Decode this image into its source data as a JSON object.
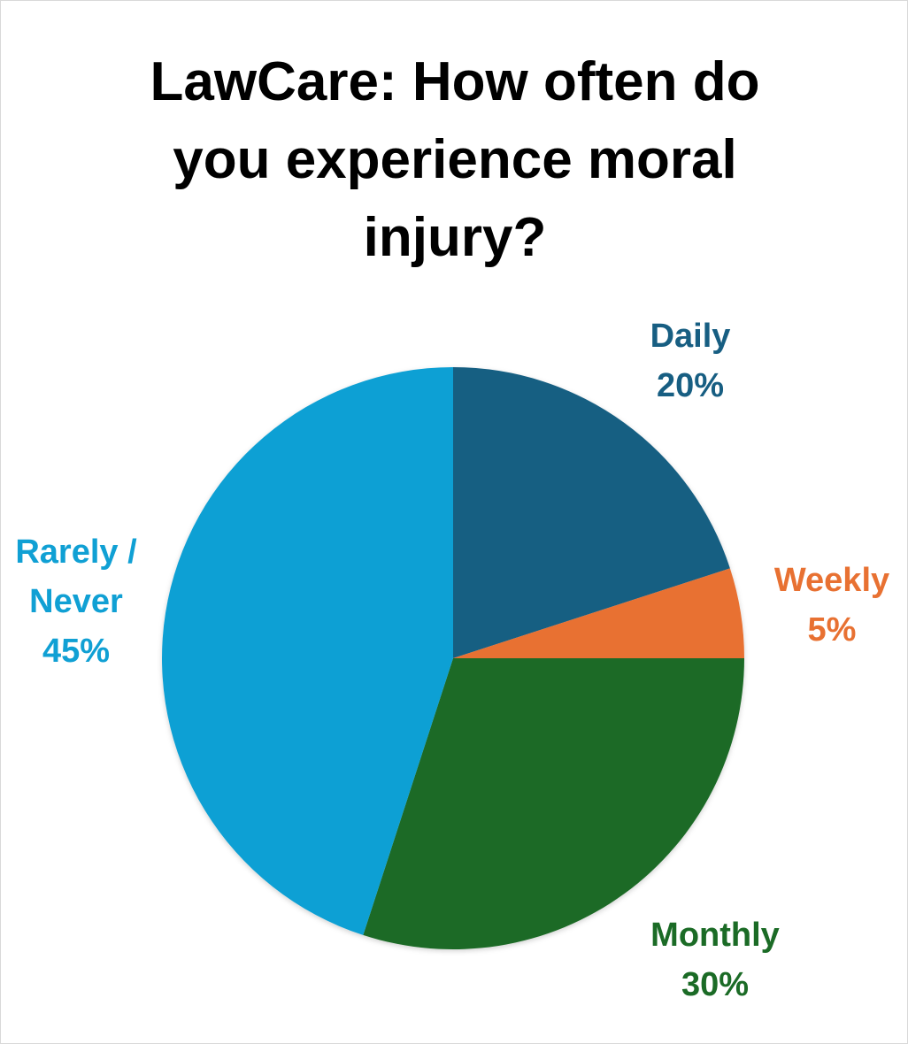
{
  "chart_data": {
    "type": "pie",
    "title_lines": [
      "LawCare: How often do",
      "you experience moral",
      "injury?"
    ],
    "slices": [
      {
        "label_lines": [
          "Daily"
        ],
        "percent_label": "20%",
        "value": 20,
        "color": "#175e82"
      },
      {
        "label_lines": [
          "Weekly"
        ],
        "percent_label": "5%",
        "value": 5,
        "color": "#e87132"
      },
      {
        "label_lines": [
          "Monthly"
        ],
        "percent_label": "30%",
        "value": 30,
        "color": "#1b6b26"
      },
      {
        "label_lines": [
          "Rarely /",
          "Never"
        ],
        "percent_label": "45%",
        "value": 45,
        "color": "#10a0d4"
      }
    ],
    "start_direction": "12 o'clock",
    "direction": "clockwise",
    "legend": "none",
    "data_labels": "outside"
  }
}
